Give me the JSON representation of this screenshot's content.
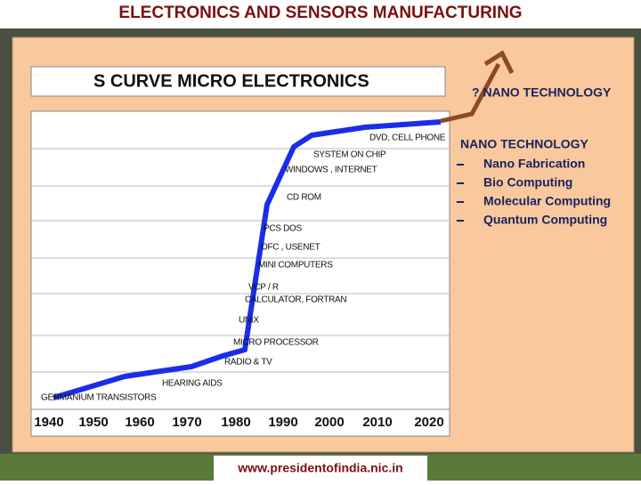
{
  "header": {
    "title": "ELECTRONICS AND SENSORS MANUFACTURING"
  },
  "chart": {
    "title": "S CURVE MICRO ELECTRONICS",
    "years": [
      1940,
      1950,
      1960,
      1970,
      1980,
      1990,
      2000,
      2010,
      2020
    ],
    "milestones": [
      "GERMANIUM TRANSISTORS",
      "HEARING AIDS",
      "RADIO & TV",
      "MICRO PROCESSOR",
      "UNIX",
      "CALCULATOR, FORTRAN",
      "VCP / R",
      "MINI COMPUTERS",
      "OFC , USENET",
      "PCS DOS",
      "CD ROM",
      "WINDOWS , INTERNET",
      "SYSTEM ON CHIP",
      "DVD, CELL PHONE"
    ]
  },
  "side": {
    "question": "? NANO TECHNOLOGY",
    "heading": "NANO TECHNOLOGY",
    "items": [
      "Nano Fabrication",
      "Bio Computing",
      "Molecular Computing",
      "Quantum Computing"
    ]
  },
  "footer": {
    "url": "www.presidentofindia.nic.in"
  }
}
